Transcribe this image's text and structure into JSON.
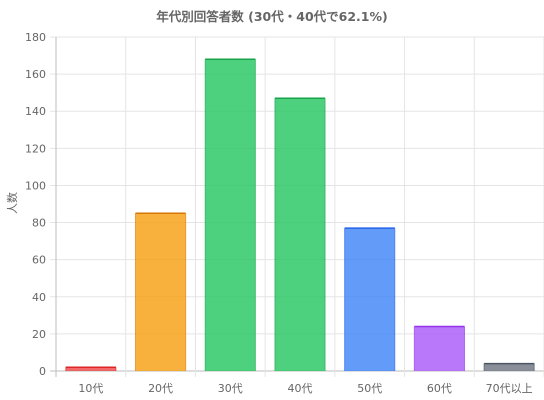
{
  "chart_data": {
    "type": "bar",
    "title": "年代別回答者数 (30代・40代で62.1%)",
    "xlabel": "",
    "ylabel": "人数",
    "categories": [
      "10代",
      "20代",
      "30代",
      "40代",
      "50代",
      "60代",
      "70代以上"
    ],
    "values": [
      2,
      85,
      168,
      147,
      77,
      24,
      4
    ],
    "ylim": [
      0,
      180
    ],
    "yticks": [
      0,
      20,
      40,
      60,
      80,
      100,
      120,
      140,
      160,
      180
    ],
    "grid": true,
    "colors": {
      "fill": [
        "#ef4444",
        "#f59e0b",
        "#22c55e",
        "#22c55e",
        "#3b82f6",
        "#a855f7",
        "#6b7280"
      ],
      "border": [
        "#dc2626",
        "#d97706",
        "#16a34a",
        "#16a34a",
        "#2563eb",
        "#9333ea",
        "#4b5563"
      ]
    }
  }
}
